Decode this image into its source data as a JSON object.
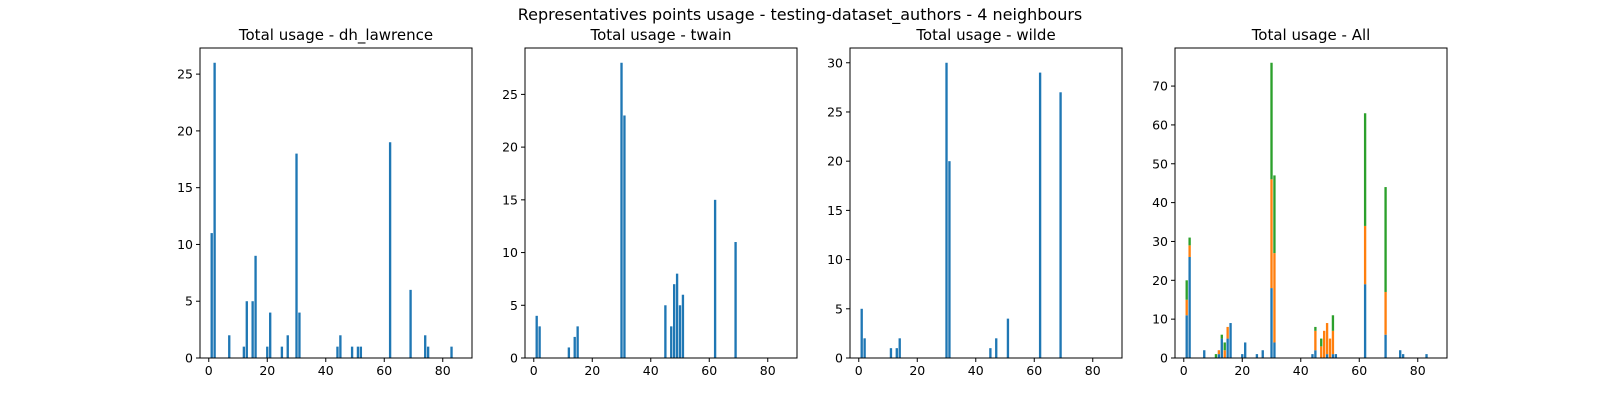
{
  "figure": {
    "suptitle": "Representatives points usage - testing-dataset_authors - 4 neighbours"
  },
  "colors": {
    "blue": "#1f77b4",
    "orange": "#ff7f0e",
    "green": "#2ca02c"
  },
  "chart_data": [
    {
      "type": "bar",
      "title": "Total usage - dh_lawrence",
      "xlim": [
        -3,
        90
      ],
      "ylim": [
        0,
        27.3
      ],
      "xticks": [
        0,
        20,
        40,
        60,
        80
      ],
      "yticks": [
        0,
        5,
        10,
        15,
        20,
        25
      ],
      "series": [
        {
          "color": "#1f77b4",
          "x": [
            1,
            2,
            7,
            12,
            13,
            15,
            16,
            20,
            21,
            25,
            27,
            30,
            31,
            44,
            45,
            49,
            51,
            52,
            62,
            69,
            74,
            75,
            83
          ],
          "values": [
            11,
            26,
            2,
            1,
            5,
            5,
            9,
            1,
            4,
            1,
            2,
            18,
            4,
            1,
            2,
            1,
            1,
            1,
            19,
            6,
            2,
            1,
            1
          ]
        }
      ]
    },
    {
      "type": "bar",
      "title": "Total usage - twain",
      "xlim": [
        -3,
        90
      ],
      "ylim": [
        0,
        29.4
      ],
      "xticks": [
        0,
        20,
        40,
        60,
        80
      ],
      "yticks": [
        0,
        5,
        10,
        15,
        20,
        25
      ],
      "series": [
        {
          "color": "#1f77b4",
          "x": [
            1,
            2,
            12,
            14,
            15,
            30,
            31,
            45,
            47,
            48,
            49,
            50,
            51,
            62,
            69
          ],
          "values": [
            4,
            3,
            1,
            2,
            3,
            28,
            23,
            5,
            3,
            7,
            8,
            5,
            6,
            15,
            11
          ]
        }
      ]
    },
    {
      "type": "bar",
      "title": "Total usage - wilde",
      "xlim": [
        -3,
        90
      ],
      "ylim": [
        0,
        31.5
      ],
      "xticks": [
        0,
        20,
        40,
        60,
        80
      ],
      "yticks": [
        0,
        5,
        10,
        15,
        20,
        25,
        30
      ],
      "series": [
        {
          "color": "#1f77b4",
          "x": [
            1,
            2,
            11,
            13,
            14,
            30,
            31,
            45,
            47,
            51,
            62,
            69
          ],
          "values": [
            5,
            2,
            1,
            1,
            2,
            30,
            20,
            1,
            2,
            4,
            29,
            27
          ]
        }
      ]
    },
    {
      "type": "bar",
      "stacked": true,
      "title": "Total usage - All",
      "xlim": [
        -3,
        90
      ],
      "ylim": [
        0,
        79.8
      ],
      "xticks": [
        0,
        20,
        40,
        60,
        80
      ],
      "yticks": [
        0,
        10,
        20,
        30,
        40,
        50,
        60,
        70
      ],
      "x": [
        1,
        2,
        7,
        11,
        12,
        13,
        14,
        15,
        16,
        20,
        21,
        25,
        27,
        30,
        31,
        44,
        45,
        47,
        48,
        49,
        50,
        51,
        52,
        62,
        69,
        74,
        75,
        83
      ],
      "series": [
        {
          "color": "#1f77b4",
          "values": [
            11,
            26,
            2,
            0,
            1,
            5,
            0,
            5,
            9,
            1,
            4,
            1,
            2,
            18,
            4,
            1,
            2,
            0,
            0,
            1,
            0,
            1,
            1,
            19,
            6,
            2,
            1,
            1
          ]
        },
        {
          "color": "#ff7f0e",
          "values": [
            4,
            3,
            0,
            0,
            1,
            0,
            2,
            3,
            0,
            0,
            0,
            0,
            0,
            28,
            23,
            0,
            5,
            3,
            7,
            8,
            5,
            6,
            0,
            15,
            11,
            0,
            0,
            0
          ]
        },
        {
          "color": "#2ca02c",
          "values": [
            5,
            2,
            0,
            1,
            0,
            1,
            2,
            0,
            0,
            0,
            0,
            0,
            0,
            30,
            20,
            0,
            1,
            2,
            0,
            0,
            0,
            4,
            0,
            29,
            27,
            0,
            0,
            0
          ]
        }
      ]
    }
  ]
}
